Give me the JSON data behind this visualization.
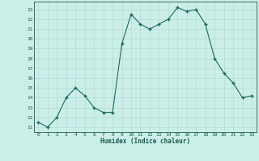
{
  "x": [
    0,
    1,
    2,
    3,
    4,
    5,
    6,
    7,
    8,
    9,
    10,
    11,
    12,
    13,
    14,
    15,
    16,
    17,
    18,
    19,
    20,
    21,
    22,
    23
  ],
  "y": [
    11.5,
    11.0,
    12.0,
    14.0,
    15.0,
    14.2,
    13.0,
    12.5,
    12.5,
    19.5,
    22.5,
    21.5,
    21.0,
    21.5,
    22.0,
    23.2,
    22.8,
    23.0,
    21.5,
    18.0,
    16.5,
    15.5,
    14.0,
    14.2
  ],
  "xlabel": "Humidex (Indice chaleur)",
  "xlim": [
    -0.5,
    23.5
  ],
  "ylim": [
    10.5,
    23.8
  ],
  "yticks": [
    11,
    12,
    13,
    14,
    15,
    16,
    17,
    18,
    19,
    20,
    21,
    22,
    23
  ],
  "xticks": [
    0,
    1,
    2,
    3,
    4,
    5,
    6,
    7,
    8,
    9,
    10,
    11,
    12,
    13,
    14,
    15,
    16,
    17,
    18,
    19,
    20,
    21,
    22,
    23
  ],
  "line_color": "#1a6b5a",
  "marker_color": "#1a6b5a",
  "bg_color": "#cceee8",
  "grid_color": "#b0ddd8",
  "tick_color": "#1a5c50",
  "label_color": "#1a5c50"
}
